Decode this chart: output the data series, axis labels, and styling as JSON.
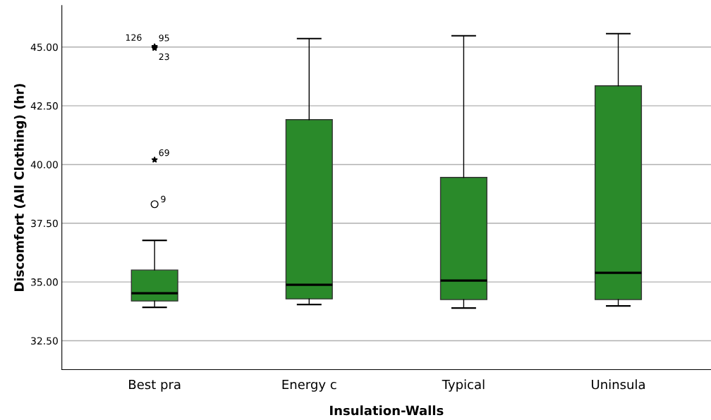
{
  "chart_data": {
    "type": "box",
    "xlabel": "Insulation-Walls",
    "ylabel": "Discomfort (All Clothing) (hr)",
    "categories": [
      "Best pra",
      "Energy c",
      "Typical",
      "Uninsula"
    ],
    "color": "#2a8a2a",
    "boxes": [
      {
        "low": 33.92,
        "q1": 34.19,
        "median": 34.52,
        "q3": 35.51,
        "high": 36.77,
        "outliers": [
          38.31,
          40.2,
          44.95,
          45.02,
          45.0
        ]
      },
      {
        "low": 34.04,
        "q1": 34.28,
        "median": 34.88,
        "q3": 41.91,
        "high": 45.36
      },
      {
        "low": 33.89,
        "q1": 34.25,
        "median": 35.06,
        "q3": 39.45,
        "high": 45.48
      },
      {
        "low": 33.98,
        "q1": 34.25,
        "median": 35.39,
        "q3": 43.35,
        "high": 45.57
      }
    ],
    "annotations": [
      "9",
      "69",
      "23",
      "126",
      "95"
    ],
    "ylim": [
      31.27,
      46.77
    ],
    "yticks": [
      {
        "value": 32.5,
        "label": "32.50"
      },
      {
        "value": 35,
        "label": "35.00"
      },
      {
        "value": 37.5,
        "label": "37.50"
      },
      {
        "value": 40,
        "label": "40.00"
      },
      {
        "value": 42.5,
        "label": "42.50"
      },
      {
        "value": 45,
        "label": "45.00"
      }
    ],
    "grid": "y"
  }
}
